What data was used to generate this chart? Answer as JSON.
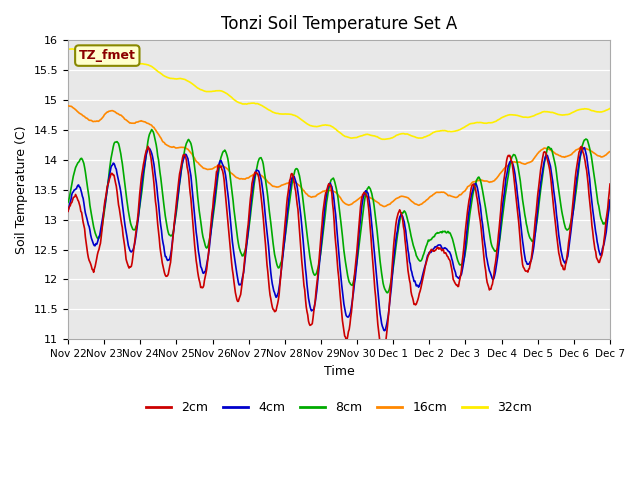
{
  "title": "Tonzi Soil Temperature Set A",
  "xlabel": "Time",
  "ylabel": "Soil Temperature (C)",
  "ylim": [
    11.0,
    16.0
  ],
  "yticks": [
    11.0,
    11.5,
    12.0,
    12.5,
    13.0,
    13.5,
    14.0,
    14.5,
    15.0,
    15.5,
    16.0
  ],
  "xtick_labels": [
    "Nov 22",
    "Nov 23",
    "Nov 24",
    "Nov 25",
    "Nov 26",
    "Nov 27",
    "Nov 28",
    "Nov 29",
    "Nov 30",
    "Dec 1",
    "Dec 2",
    "Dec 3",
    "Dec 4",
    "Dec 5",
    "Dec 6",
    "Dec 7"
  ],
  "colors": {
    "2cm": "#cc0000",
    "4cm": "#0000cc",
    "8cm": "#00aa00",
    "16cm": "#ff8800",
    "32cm": "#ffee00"
  },
  "legend_label": "TZ_fmet",
  "bg_color": "#e8e8e8",
  "n_points": 720
}
